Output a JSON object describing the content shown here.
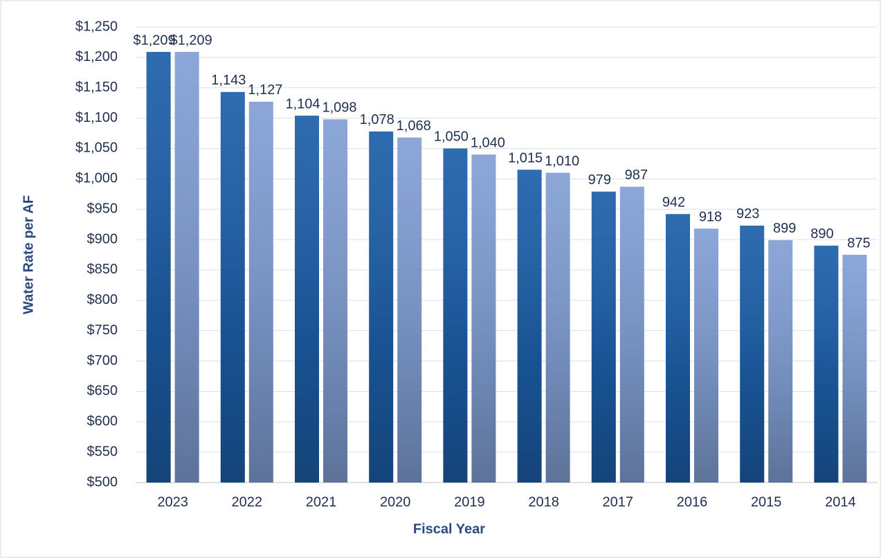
{
  "chart_data": {
    "type": "bar",
    "x_label": "Fiscal Year",
    "y_label": "Water Rate per AF",
    "categories": [
      "2023",
      "2022",
      "2021",
      "2020",
      "2019",
      "2018",
      "2017",
      "2016",
      "2015",
      "2014"
    ],
    "series": [
      {
        "color": "#1c5ea8",
        "values": [
          1209,
          1143,
          1104,
          1078,
          1050,
          1015,
          979,
          942,
          923,
          890
        ],
        "value_labels": [
          "$1,209",
          "1,143",
          "1,104",
          "1,078",
          "1,050",
          "1,015",
          "979",
          "942",
          "923",
          "890"
        ]
      },
      {
        "color": "#819fd4",
        "values": [
          1209,
          1127,
          1098,
          1068,
          1040,
          1010,
          987,
          918,
          899,
          875
        ],
        "value_labels": [
          "$1,209",
          "1,127",
          "1,098",
          "1,068",
          "1,040",
          "1,010",
          "987",
          "918",
          "899",
          "875"
        ]
      }
    ],
    "ylim": [
      500,
      1250
    ],
    "yticks": [
      {
        "value": 500,
        "label": "$500"
      },
      {
        "value": 550,
        "label": "$550"
      },
      {
        "value": 600,
        "label": "$600"
      },
      {
        "value": 650,
        "label": "$650"
      },
      {
        "value": 700,
        "label": "$700"
      },
      {
        "value": 750,
        "label": "$750"
      },
      {
        "value": 800,
        "label": "$800"
      },
      {
        "value": 850,
        "label": "$850"
      },
      {
        "value": 900,
        "label": "$900"
      },
      {
        "value": 950,
        "label": "$950"
      },
      {
        "value": 1000,
        "label": "$1,000"
      },
      {
        "value": 1050,
        "label": "$1,050"
      },
      {
        "value": 1100,
        "label": "$1,100"
      },
      {
        "value": 1150,
        "label": "$1,150"
      },
      {
        "value": 1200,
        "label": "$1,200"
      },
      {
        "value": 1250,
        "label": "$1,250"
      }
    ],
    "grid": true
  }
}
